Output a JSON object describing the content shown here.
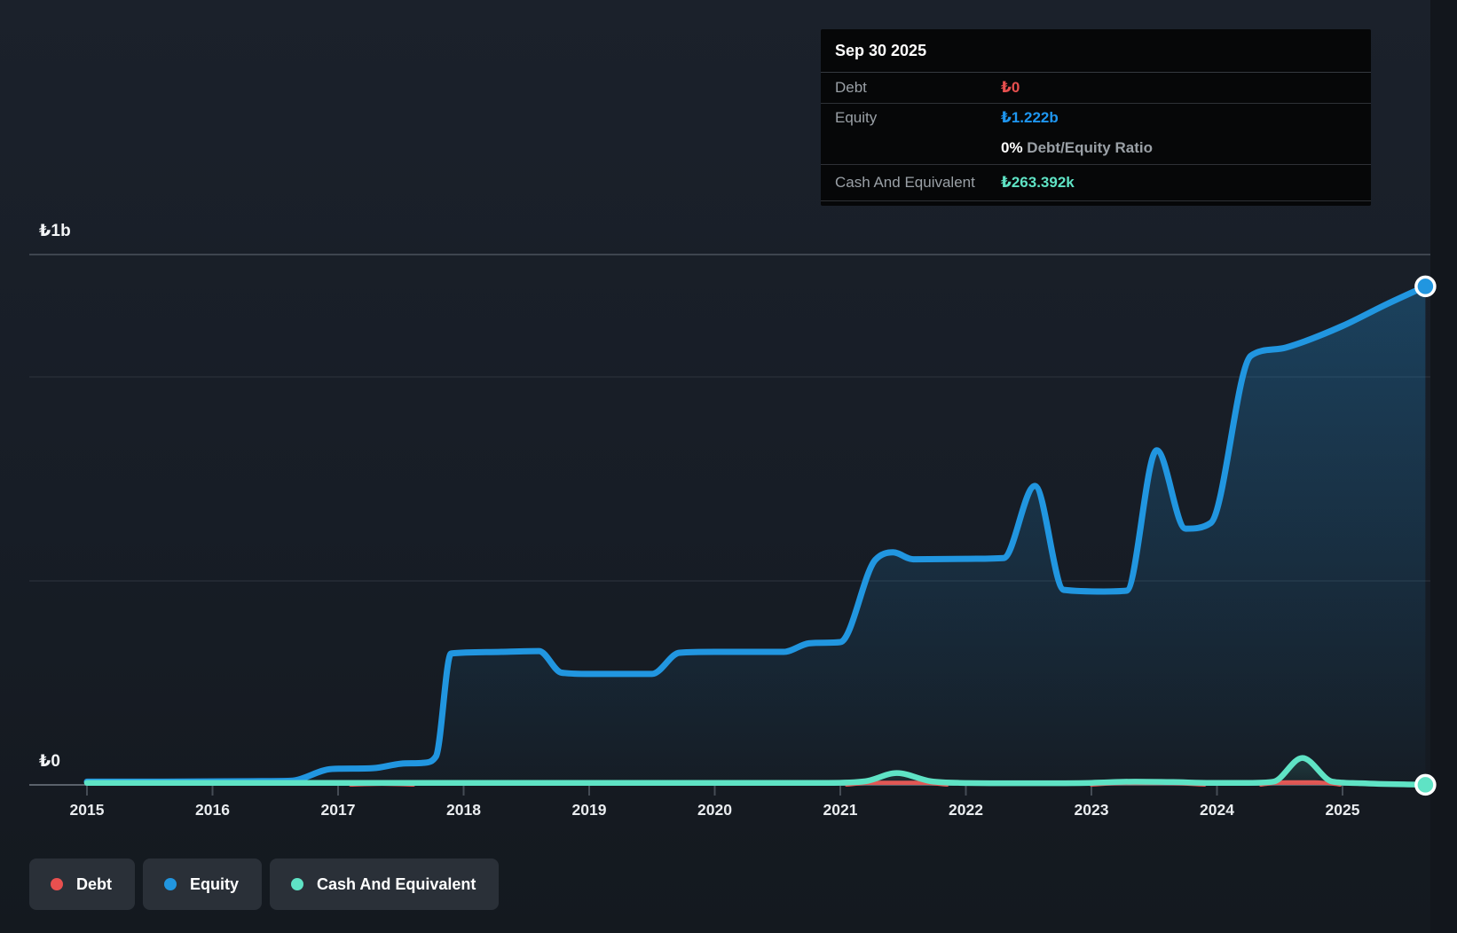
{
  "y_axis": {
    "top_label": "₺1b",
    "zero_label": "₺0"
  },
  "x_axis": {
    "ticks": [
      "2015",
      "2016",
      "2017",
      "2018",
      "2019",
      "2020",
      "2021",
      "2022",
      "2023",
      "2024",
      "2025"
    ]
  },
  "tooltip": {
    "date": "Sep 30 2025",
    "debt_label": "Debt",
    "debt_value": "₺0",
    "equity_label": "Equity",
    "equity_value": "₺1.222b",
    "ratio_strong": "0%",
    "ratio_rest": " Debt/Equity Ratio",
    "cash_label": "Cash And Equivalent",
    "cash_value": "₺263.392k"
  },
  "legend": [
    {
      "label": "Debt",
      "color": "#e8504f"
    },
    {
      "label": "Equity",
      "color": "#2196e0"
    },
    {
      "label": "Cash And Equivalent",
      "color": "#5fe3c5"
    }
  ],
  "chart_data": {
    "type": "area",
    "title": "Debt to Equity history",
    "currency": "₺",
    "unit_note": "values in millions of TRY, read from axis scale ₺0–₺1b (plot max ≈ ₺1.3b)",
    "x_range": [
      2015,
      2025.75
    ],
    "y_range_m": [
      0,
      1300
    ],
    "gridlines_m": [
      1000,
      500
    ],
    "grid_on": true,
    "legend_position": "bottom-left",
    "x_ticks": [
      2015,
      2016,
      2017,
      2018,
      2019,
      2020,
      2021,
      2022,
      2023,
      2024,
      2025
    ],
    "series": [
      {
        "name": "Debt",
        "color": "#e8504f",
        "final_label": "₺0",
        "segments": [
          [
            [
              2017.1,
              0
            ],
            [
              2017.35,
              2
            ],
            [
              2017.6,
              0
            ]
          ],
          [
            [
              2021.05,
              0
            ],
            [
              2021.3,
              6
            ],
            [
              2021.6,
              6
            ],
            [
              2021.85,
              0
            ]
          ],
          [
            [
              2023.0,
              0
            ],
            [
              2023.25,
              4
            ],
            [
              2023.6,
              4
            ],
            [
              2023.9,
              0
            ]
          ],
          [
            [
              2024.35,
              0
            ],
            [
              2024.55,
              7
            ],
            [
              2024.78,
              7
            ],
            [
              2024.98,
              0
            ]
          ]
        ]
      },
      {
        "name": "Equity",
        "color": "#2196e0",
        "final_label": "₺1.222b",
        "points": [
          [
            2015.0,
            8
          ],
          [
            2015.6,
            8
          ],
          [
            2016.3,
            9
          ],
          [
            2016.62,
            10
          ],
          [
            2016.95,
            39
          ],
          [
            2017.28,
            41
          ],
          [
            2017.5,
            52
          ],
          [
            2017.68,
            54
          ],
          [
            2017.78,
            70
          ],
          [
            2017.9,
            322
          ],
          [
            2018.3,
            326
          ],
          [
            2018.6,
            328
          ],
          [
            2018.78,
            275
          ],
          [
            2019.0,
            272
          ],
          [
            2019.5,
            272
          ],
          [
            2019.72,
            324
          ],
          [
            2020.0,
            326
          ],
          [
            2020.55,
            326
          ],
          [
            2020.75,
            347
          ],
          [
            2021.0,
            350
          ],
          [
            2021.28,
            552
          ],
          [
            2021.42,
            570
          ],
          [
            2021.58,
            553
          ],
          [
            2022.0,
            554
          ],
          [
            2022.3,
            556
          ],
          [
            2022.55,
            733
          ],
          [
            2022.78,
            478
          ],
          [
            2023.1,
            474
          ],
          [
            2023.28,
            476
          ],
          [
            2023.52,
            820
          ],
          [
            2023.75,
            628
          ],
          [
            2023.95,
            642
          ],
          [
            2024.27,
            1052
          ],
          [
            2024.55,
            1072
          ],
          [
            2025.0,
            1125
          ],
          [
            2025.35,
            1178
          ],
          [
            2025.66,
            1222
          ]
        ]
      },
      {
        "name": "Cash And Equivalent",
        "color": "#5fe3c5",
        "final_label": "₺263.392k",
        "points": [
          [
            2015.0,
            5
          ],
          [
            2016.0,
            5
          ],
          [
            2017.0,
            5
          ],
          [
            2018.0,
            5
          ],
          [
            2019.0,
            5
          ],
          [
            2020.0,
            5
          ],
          [
            2020.9,
            5
          ],
          [
            2021.2,
            9
          ],
          [
            2021.45,
            29
          ],
          [
            2021.72,
            9
          ],
          [
            2021.95,
            5
          ],
          [
            2022.5,
            4
          ],
          [
            2023.0,
            5
          ],
          [
            2023.35,
            8
          ],
          [
            2023.65,
            7
          ],
          [
            2023.95,
            5
          ],
          [
            2024.25,
            5
          ],
          [
            2024.45,
            8
          ],
          [
            2024.68,
            66
          ],
          [
            2024.92,
            8
          ],
          [
            2025.15,
            4
          ],
          [
            2025.66,
            0.26
          ]
        ]
      }
    ],
    "end_markers": [
      {
        "series": "Equity",
        "x": 2025.66,
        "value_m": 1222
      },
      {
        "series": "Cash And Equivalent",
        "x": 2025.66,
        "value_m": 0.26
      }
    ]
  }
}
